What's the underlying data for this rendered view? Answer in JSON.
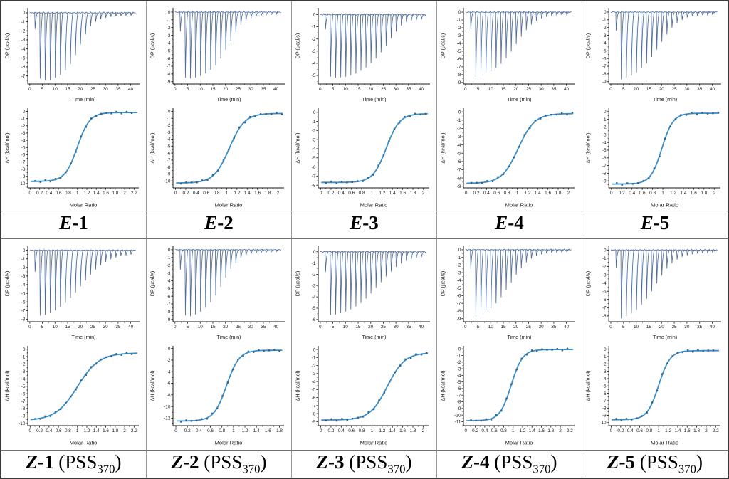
{
  "figure": {
    "rows": 2,
    "cols": 5,
    "panel_titles": [
      "E-1",
      "E-2",
      "E-3",
      "E-4",
      "E-5",
      "Z-1 (PSS370)",
      "Z-2 (PSS370)",
      "Z-3 (PSS370)",
      "Z-4 (PSS370)",
      "Z-5 (PSS370)"
    ]
  },
  "styles": {
    "spike_color": "#4f6d9b",
    "curve_color": "#3d8fc4",
    "marker_color": "#2a669c",
    "axis_color": "#1a1a1a",
    "divider_color": "#9a9a9a",
    "outer_border_color": "#3a3a3a"
  },
  "chart_data": [
    {
      "panel": "E-1",
      "label": {
        "em": "E",
        "num": "-1",
        "pre": "",
        "sub": "",
        "post": ""
      },
      "thermogram": {
        "type": "line",
        "xlabel": "Time (min)",
        "ylabel": "DP (µcal/s)",
        "xtick_max": 40,
        "xtick_step": 5,
        "ylim_bottom": -7.9,
        "ytick_min": -7,
        "ytick_step": 1,
        "injection_start": 2,
        "injection_interval": 2,
        "spike_depths": [
          -1.8,
          -7.3,
          -7.5,
          -7.45,
          -7.2,
          -6.9,
          -6.4,
          -5.7,
          -4.7,
          -3.5,
          -2.4,
          -1.5,
          -1.0,
          -0.7,
          -0.55,
          -0.45,
          -0.4,
          -0.35,
          -0.3,
          -0.28
        ]
      },
      "isotherm": {
        "type": "scatter-line",
        "xlabel": "Molar Ratio",
        "ylabel": "ΔH (kcal/mol)",
        "xtick_max": 2.2,
        "xtick_step": 0.2,
        "xmax_axis": 2.3,
        "x_end": 2.15,
        "ylim_bottom": -10.6,
        "ytick_min": -10,
        "ytick_step": 1,
        "dh_initial": -9.7,
        "dh_final": -0.15,
        "midpoint": 1.0,
        "steepness": 0.13,
        "n_points": 20
      }
    },
    {
      "panel": "E-2",
      "label": {
        "em": "E",
        "num": "-2",
        "pre": "",
        "sub": "",
        "post": ""
      },
      "thermogram": {
        "type": "line",
        "xlabel": "Time (min)",
        "ylabel": "DP (µcal/s)",
        "xtick_max": 40,
        "xtick_step": 5,
        "ylim_bottom": -9.3,
        "ytick_min": -9,
        "ytick_step": 1,
        "injection_start": 2,
        "injection_interval": 2,
        "spike_depths": [
          -2.5,
          -8.5,
          -8.6,
          -8.45,
          -8.25,
          -7.95,
          -7.5,
          -6.9,
          -6.0,
          -4.9,
          -3.7,
          -2.6,
          -1.7,
          -1.15,
          -0.8,
          -0.6,
          -0.5,
          -0.42,
          -0.36,
          -0.3
        ]
      },
      "isotherm": {
        "type": "scatter-line",
        "xlabel": "Molar Ratio",
        "ylabel": "ΔH (kcal/mol)",
        "xtick_max": 2.0,
        "xtick_step": 0.2,
        "xmax_axis": 2.12,
        "x_end": 2.08,
        "ylim_bottom": -11.0,
        "ytick_min": -10,
        "ytick_step": 1,
        "dh_initial": -10.3,
        "dh_final": -0.3,
        "midpoint": 1.05,
        "steepness": 0.15,
        "n_points": 20
      }
    },
    {
      "panel": "E-3",
      "label": {
        "em": "E",
        "num": "-3",
        "pre": "",
        "sub": "",
        "post": ""
      },
      "thermogram": {
        "type": "line",
        "xlabel": "Time (min)",
        "ylabel": "DP (µcal/s)",
        "xtick_max": 40,
        "xtick_step": 5,
        "ylim_bottom": -5.7,
        "ytick_min": -5,
        "ytick_step": 1,
        "injection_start": 2,
        "injection_interval": 2,
        "spike_depths": [
          -1.2,
          -5.1,
          -5.2,
          -5.15,
          -5.1,
          -5.0,
          -4.85,
          -4.6,
          -4.35,
          -4.0,
          -3.6,
          -3.1,
          -2.55,
          -1.95,
          -1.4,
          -0.9,
          -0.6,
          -0.5,
          -0.45,
          -0.4
        ]
      },
      "isotherm": {
        "type": "scatter-line",
        "xlabel": "Molar Ratio",
        "ylabel": "ΔH (kcal/mol)",
        "xtick_max": 2.0,
        "xtick_step": 0.2,
        "xmax_axis": 2.12,
        "x_end": 2.05,
        "ylim_bottom": -8.3,
        "ytick_min": -8,
        "ytick_step": 1,
        "dh_initial": -7.7,
        "dh_final": -0.15,
        "midpoint": 1.28,
        "steepness": 0.13,
        "n_points": 20
      }
    },
    {
      "panel": "E-4",
      "label": {
        "em": "E",
        "num": "-4",
        "pre": "",
        "sub": "",
        "post": ""
      },
      "thermogram": {
        "type": "line",
        "xlabel": "Time (min)",
        "ylabel": "DP (µcal/s)",
        "xtick_max": 40,
        "xtick_step": 5,
        "ylim_bottom": -9.2,
        "ytick_min": -9,
        "ytick_step": 1,
        "injection_start": 2,
        "injection_interval": 2,
        "spike_depths": [
          -2.2,
          -8.3,
          -8.15,
          -7.9,
          -7.6,
          -7.15,
          -6.6,
          -5.9,
          -5.05,
          -4.1,
          -3.15,
          -2.3,
          -1.6,
          -1.1,
          -0.8,
          -0.6,
          -0.5,
          -0.4,
          -0.35,
          -0.3
        ]
      },
      "isotherm": {
        "type": "scatter-line",
        "xlabel": "Molar Ratio",
        "ylabel": "ΔH (kcal/mol)",
        "xtick_max": 2.0,
        "xtick_step": 0.2,
        "xmax_axis": 2.12,
        "x_end": 2.08,
        "ylim_bottom": -9.2,
        "ytick_min": -9,
        "ytick_step": 1,
        "dh_initial": -8.65,
        "dh_final": -0.2,
        "midpoint": 1.02,
        "steepness": 0.16,
        "n_points": 20
      }
    },
    {
      "panel": "E-5",
      "label": {
        "em": "E",
        "num": "-5",
        "pre": "",
        "sub": "",
        "post": ""
      },
      "thermogram": {
        "type": "line",
        "xlabel": "Time (min)",
        "ylabel": "DP (µcal/s)",
        "xtick_max": 40,
        "xtick_step": 5,
        "ylim_bottom": -9.3,
        "ytick_min": -9,
        "ytick_step": 1,
        "injection_start": 2,
        "injection_interval": 2,
        "spike_depths": [
          -2.4,
          -8.7,
          -8.5,
          -8.2,
          -7.8,
          -7.25,
          -6.6,
          -5.8,
          -4.85,
          -3.85,
          -2.9,
          -2.05,
          -1.4,
          -1.0,
          -0.7,
          -0.55,
          -0.45,
          -0.38,
          -0.32,
          -0.28
        ]
      },
      "isotherm": {
        "type": "scatter-line",
        "xlabel": "Molar Ratio",
        "ylabel": "ΔH (kcal/mol)",
        "xtick_max": 2.0,
        "xtick_step": 0.2,
        "xmax_axis": 2.12,
        "x_end": 2.08,
        "ylim_bottom": -9.9,
        "ytick_min": -9,
        "ytick_step": 1,
        "dh_initial": -9.4,
        "dh_final": -0.2,
        "midpoint": 0.98,
        "steepness": 0.11,
        "n_points": 20
      }
    },
    {
      "panel": "Z-1 (PSS370)",
      "label": {
        "em": "Z",
        "num": "-1",
        "pre": " (PSS",
        "sub": "370",
        "post": ")"
      },
      "thermogram": {
        "type": "line",
        "xlabel": "Time (min)",
        "ylabel": "DP (µcal/s)",
        "xtick_max": 40,
        "xtick_step": 5,
        "ylim_bottom": -8.3,
        "ytick_min": -8,
        "ytick_step": 1,
        "injection_start": 2,
        "injection_interval": 2,
        "spike_depths": [
          -2.5,
          -7.6,
          -7.5,
          -7.3,
          -7.0,
          -6.6,
          -6.1,
          -5.55,
          -4.9,
          -4.2,
          -3.5,
          -2.85,
          -2.25,
          -1.75,
          -1.35,
          -1.05,
          -0.85,
          -0.7,
          -0.58,
          -0.5
        ]
      },
      "isotherm": {
        "type": "scatter-line",
        "xlabel": "Molar Ratio",
        "ylabel": "ΔH (kcal/mol)",
        "xtick_max": 2.2,
        "xtick_step": 0.2,
        "xmax_axis": 2.3,
        "x_end": 2.15,
        "ylim_bottom": -10.3,
        "ytick_min": -10,
        "ytick_step": 1,
        "dh_initial": -9.6,
        "dh_final": -0.5,
        "midpoint": 1.0,
        "steepness": 0.23,
        "n_points": 20
      }
    },
    {
      "panel": "Z-2 (PSS370)",
      "label": {
        "em": "Z",
        "num": "-2",
        "pre": " (PSS",
        "sub": "370",
        "post": ")"
      },
      "thermogram": {
        "type": "line",
        "xlabel": "Time (min)",
        "ylabel": "DP (µcal/s)",
        "xtick_max": 40,
        "xtick_step": 5,
        "ylim_bottom": -9.3,
        "ytick_min": -9,
        "ytick_step": 1,
        "injection_start": 2,
        "injection_interval": 2,
        "spike_depths": [
          -2.6,
          -8.5,
          -8.6,
          -8.35,
          -8.0,
          -7.5,
          -6.8,
          -5.9,
          -4.8,
          -3.6,
          -2.5,
          -1.7,
          -1.15,
          -0.8,
          -0.6,
          -0.48,
          -0.4,
          -0.34,
          -0.3,
          -0.26
        ]
      },
      "isotherm": {
        "type": "scatter-line",
        "xlabel": "Molar Ratio",
        "ylabel": "ΔH (kcal/mol)",
        "xtick_max": 1.8,
        "xtick_step": 0.2,
        "xmax_axis": 1.88,
        "x_end": 1.8,
        "ylim_bottom": -13.3,
        "ytick_min": -12,
        "ytick_step": 2,
        "dh_initial": -12.5,
        "dh_final": -0.3,
        "midpoint": 0.88,
        "steepness": 0.11,
        "n_points": 20
      }
    },
    {
      "panel": "Z-3 (PSS370)",
      "label": {
        "em": "Z",
        "num": "-3",
        "pre": " (PSS",
        "sub": "370",
        "post": ")"
      },
      "thermogram": {
        "type": "line",
        "xlabel": "Time (min)",
        "ylabel": "DP (µcal/s)",
        "xtick_max": 40,
        "xtick_step": 5,
        "ylim_bottom": -6.2,
        "ytick_min": -6,
        "ytick_step": 1,
        "injection_start": 2,
        "injection_interval": 2,
        "spike_depths": [
          -1.8,
          -5.6,
          -5.55,
          -5.45,
          -5.3,
          -5.1,
          -4.85,
          -4.55,
          -4.15,
          -3.7,
          -3.2,
          -2.7,
          -2.2,
          -1.75,
          -1.35,
          -1.05,
          -0.82,
          -0.65,
          -0.55,
          -0.48
        ]
      },
      "isotherm": {
        "type": "scatter-line",
        "xlabel": "Molar Ratio",
        "ylabel": "ΔH (kcal/mol)",
        "xtick_max": 2.0,
        "xtick_step": 0.2,
        "xmax_axis": 2.12,
        "x_end": 2.07,
        "ylim_bottom": -9.5,
        "ytick_min": -9,
        "ytick_step": 1,
        "dh_initial": -8.8,
        "dh_final": -0.4,
        "midpoint": 1.3,
        "steepness": 0.17,
        "n_points": 20
      }
    },
    {
      "panel": "Z-4 (PSS370)",
      "label": {
        "em": "Z",
        "num": "-4",
        "pre": " (PSS",
        "sub": "370",
        "post": ")"
      },
      "thermogram": {
        "type": "line",
        "xlabel": "Time (min)",
        "ylabel": "DP (µcal/s)",
        "xtick_max": 40,
        "xtick_step": 5,
        "ylim_bottom": -9.4,
        "ytick_min": -9,
        "ytick_step": 1,
        "injection_start": 2,
        "injection_interval": 2,
        "spike_depths": [
          -2.5,
          -8.7,
          -8.45,
          -8.1,
          -7.6,
          -7.0,
          -6.2,
          -5.3,
          -4.3,
          -3.3,
          -2.4,
          -1.65,
          -1.15,
          -0.8,
          -0.6,
          -0.47,
          -0.38,
          -0.32,
          -0.27,
          -0.24
        ]
      },
      "isotherm": {
        "type": "scatter-line",
        "xlabel": "Molar Ratio",
        "ylabel": "ΔH (kcal/mol)",
        "xtick_max": 2.2,
        "xtick_step": 0.2,
        "xmax_axis": 2.3,
        "x_end": 2.15,
        "ylim_bottom": -11.6,
        "ytick_min": -11,
        "ytick_step": 1,
        "dh_initial": -10.85,
        "dh_final": -0.1,
        "midpoint": 0.96,
        "steepness": 0.12,
        "n_points": 20
      }
    },
    {
      "panel": "Z-5 (PSS370)",
      "label": {
        "em": "Z",
        "num": "-5",
        "pre": " (PSS",
        "sub": "370",
        "post": ")"
      },
      "thermogram": {
        "type": "line",
        "xlabel": "Time (min)",
        "ylabel": "DP (µcal/s)",
        "xtick_max": 40,
        "xtick_step": 5,
        "ylim_bottom": -8.7,
        "ytick_min": -8,
        "ytick_step": 1,
        "injection_start": 2,
        "injection_interval": 2,
        "spike_depths": [
          -2.1,
          -8.3,
          -8.05,
          -7.7,
          -7.25,
          -6.65,
          -5.9,
          -5.0,
          -4.05,
          -3.1,
          -2.25,
          -1.6,
          -1.15,
          -0.82,
          -0.62,
          -0.5,
          -0.42,
          -0.35,
          -0.3,
          -0.26
        ]
      },
      "isotherm": {
        "type": "scatter-line",
        "xlabel": "Molar Ratio",
        "ylabel": "ΔH (kcal/mol)",
        "xtick_max": 2.2,
        "xtick_step": 0.2,
        "xmax_axis": 2.3,
        "x_end": 2.15,
        "ylim_bottom": -10.4,
        "ytick_min": -10,
        "ytick_step": 1,
        "dh_initial": -9.6,
        "dh_final": -0.2,
        "midpoint": 1.0,
        "steepness": 0.12,
        "n_points": 20
      }
    }
  ]
}
